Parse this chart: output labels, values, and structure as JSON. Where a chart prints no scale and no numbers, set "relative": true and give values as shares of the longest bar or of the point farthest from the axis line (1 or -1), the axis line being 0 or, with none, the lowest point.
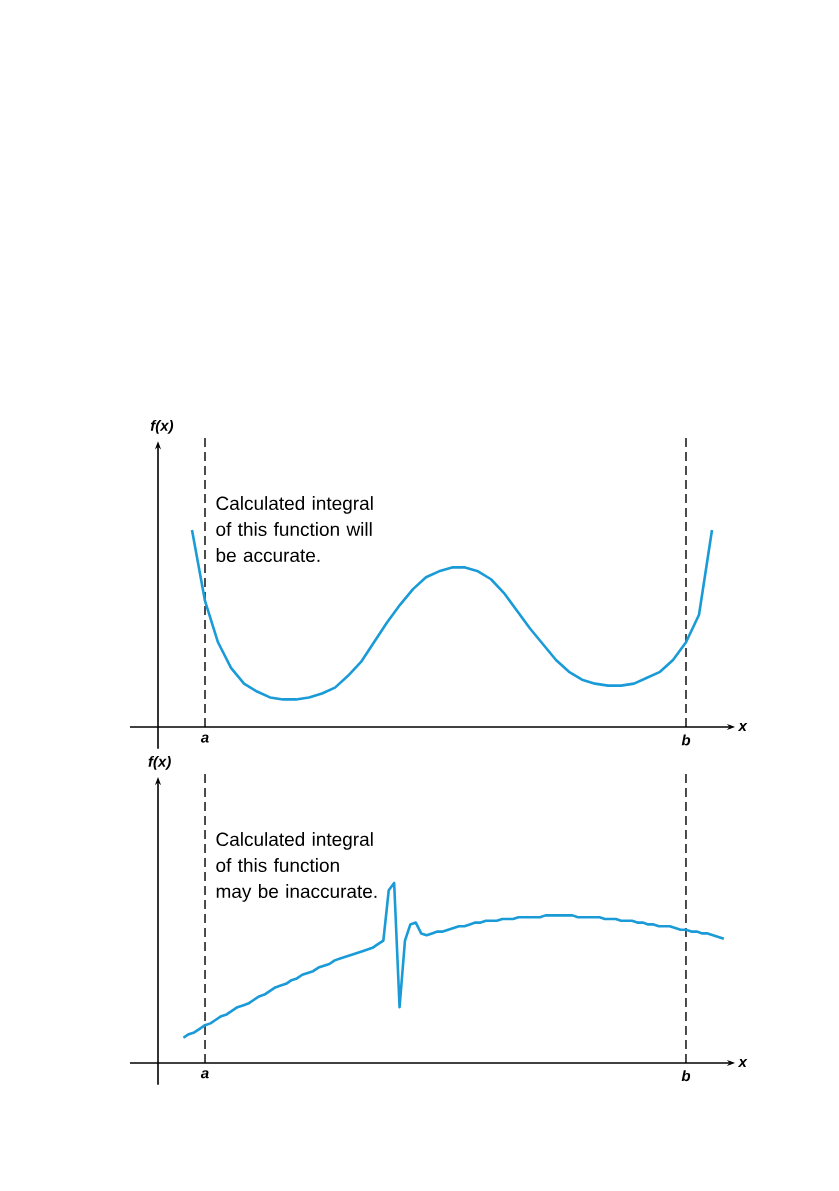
{
  "chart_data": [
    {
      "type": "line",
      "relative": true,
      "xlabel": "x",
      "ylabel": "f(x)",
      "categories": [
        null,
        "a",
        null,
        null,
        null,
        null,
        null,
        null,
        null,
        null,
        null,
        null,
        null,
        null,
        null,
        null,
        null,
        null,
        null,
        null,
        null,
        null,
        null,
        null,
        null,
        null,
        null,
        null,
        null,
        null,
        null,
        null,
        null,
        null,
        null,
        null,
        null,
        null,
        "b",
        null,
        null
      ],
      "series": [
        {
          "color": "#1a9bd7",
          "values": [
            1,
            0.64,
            0.43,
            0.3,
            0.22,
            0.18,
            0.15,
            0.14,
            0.14,
            0.15,
            0.17,
            0.2,
            0.26,
            0.33,
            0.43,
            0.53,
            0.62,
            0.7,
            0.76,
            0.79,
            0.81,
            0.81,
            0.79,
            0.75,
            0.68,
            0.59,
            0.5,
            0.42,
            0.34,
            0.28,
            0.24,
            0.22,
            0.21,
            0.21,
            0.22,
            0.25,
            0.28,
            0.34,
            0.43,
            0.57,
            1
          ]
        }
      ],
      "annotations": [
        "Calculated integral of this function will be accurate."
      ]
    },
    {
      "type": "line",
      "relative": true,
      "xlabel": "x",
      "ylabel": "f(x)",
      "categories": [
        null,
        null,
        null,
        null,
        "a",
        null,
        null,
        null,
        null,
        null,
        null,
        null,
        null,
        null,
        null,
        null,
        null,
        null,
        null,
        null,
        null,
        null,
        null,
        null,
        null,
        null,
        null,
        null,
        null,
        null,
        null,
        null,
        null,
        null,
        null,
        null,
        null,
        null,
        null,
        null,
        null,
        null,
        null,
        null,
        null,
        null,
        null,
        null,
        null,
        null,
        null,
        null,
        null,
        null,
        null,
        null,
        null,
        null,
        null,
        null,
        null,
        null,
        null,
        null,
        null,
        null,
        null,
        null,
        null,
        null,
        null,
        null,
        null,
        null,
        null,
        null,
        null,
        null,
        null,
        null,
        null,
        null,
        null,
        null,
        null,
        null,
        null,
        null,
        null,
        null,
        null,
        null,
        null,
        "b",
        null,
        null,
        null,
        null,
        null,
        null,
        null
      ],
      "series": [
        {
          "color": "#1a9bd7",
          "values": [
            0.14,
            0.16,
            0.17,
            0.19,
            0.21,
            0.22,
            0.24,
            0.26,
            0.27,
            0.29,
            0.31,
            0.32,
            0.33,
            0.35,
            0.37,
            0.38,
            0.4,
            0.42,
            0.43,
            0.44,
            0.46,
            0.47,
            0.49,
            0.5,
            0.51,
            0.53,
            0.54,
            0.55,
            0.57,
            0.58,
            0.59,
            0.6,
            0.61,
            0.62,
            0.63,
            0.64,
            0.66,
            0.68,
            0.96,
            1,
            0.31,
            0.68,
            0.77,
            0.78,
            0.72,
            0.71,
            0.72,
            0.73,
            0.73,
            0.74,
            0.75,
            0.76,
            0.76,
            0.77,
            0.78,
            0.78,
            0.79,
            0.79,
            0.79,
            0.8,
            0.8,
            0.8,
            0.81,
            0.81,
            0.81,
            0.81,
            0.81,
            0.82,
            0.82,
            0.82,
            0.82,
            0.82,
            0.82,
            0.81,
            0.81,
            0.81,
            0.81,
            0.81,
            0.8,
            0.8,
            0.8,
            0.79,
            0.79,
            0.79,
            0.78,
            0.78,
            0.77,
            0.77,
            0.76,
            0.76,
            0.76,
            0.75,
            0.74,
            0.74,
            0.73,
            0.73,
            0.72,
            0.72,
            0.71,
            0.7,
            0.69
          ]
        }
      ],
      "annotations": [
        "Calculated integral of this function may be inaccurate."
      ]
    }
  ]
}
